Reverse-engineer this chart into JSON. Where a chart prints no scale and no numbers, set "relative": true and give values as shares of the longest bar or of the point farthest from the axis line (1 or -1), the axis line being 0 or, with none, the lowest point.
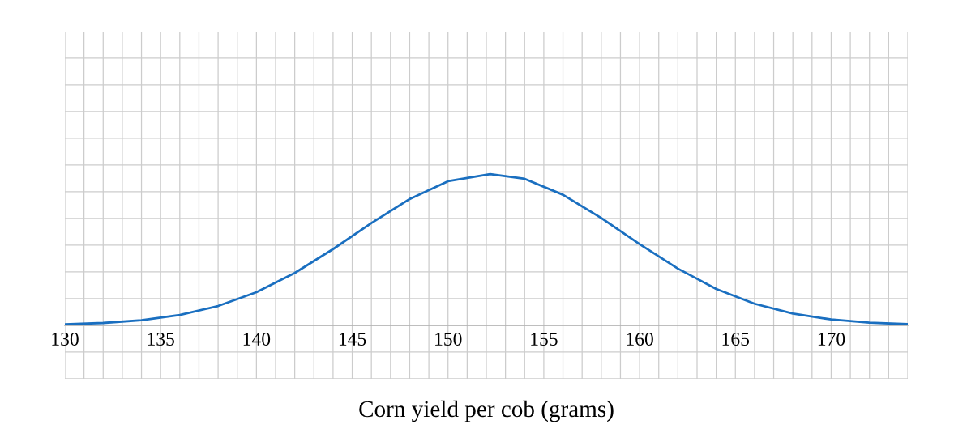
{
  "chart_data": {
    "type": "line",
    "xlabel": "Corn yield per cob (grams)",
    "relative": true,
    "grid": true,
    "marker": "none",
    "line_style": "solid",
    "tick_labels": "x",
    "xlim": [
      130,
      174
    ],
    "xticks": [
      130,
      {
        "value": 131,
        "label": null
      },
      {
        "value": 132,
        "label": null
      },
      {
        "value": 133,
        "label": null
      },
      {
        "value": 134,
        "label": null
      },
      135,
      {
        "value": 136,
        "label": null
      },
      {
        "value": 137,
        "label": null
      },
      {
        "value": 138,
        "label": null
      },
      {
        "value": 139,
        "label": null
      },
      140,
      {
        "value": 141,
        "label": null
      },
      {
        "value": 142,
        "label": null
      },
      {
        "value": 143,
        "label": null
      },
      {
        "value": 144,
        "label": null
      },
      145,
      {
        "value": 146,
        "label": null
      },
      {
        "value": 147,
        "label": null
      },
      {
        "value": 148,
        "label": null
      },
      {
        "value": 149,
        "label": null
      },
      150,
      {
        "value": 151,
        "label": null
      },
      {
        "value": 152,
        "label": null
      },
      {
        "value": 153,
        "label": null
      },
      {
        "value": 154,
        "label": null
      },
      155,
      {
        "value": 156,
        "label": null
      },
      {
        "value": 157,
        "label": null
      },
      {
        "value": 158,
        "label": null
      },
      {
        "value": 159,
        "label": null
      },
      160,
      {
        "value": 161,
        "label": null
      },
      {
        "value": 162,
        "label": null
      },
      {
        "value": 163,
        "label": null
      },
      {
        "value": 164,
        "label": null
      },
      165,
      {
        "value": 166,
        "label": null
      },
      {
        "value": 167,
        "label": null
      },
      {
        "value": 168,
        "label": null
      },
      {
        "value": 169,
        "label": null
      },
      170,
      {
        "value": 171,
        "label": null
      },
      {
        "value": 172,
        "label": null
      },
      {
        "value": 173,
        "label": null
      },
      {
        "value": 174,
        "label": null
      }
    ],
    "series": [
      {
        "color": "#1a6fc0",
        "x": [
          130,
          132,
          134,
          136,
          138,
          140,
          142,
          144,
          146,
          148,
          150,
          152.2,
          154,
          156,
          158,
          160,
          162,
          164,
          166,
          168,
          170,
          172,
          174
        ],
        "values": [
          0.007,
          0.016,
          0.034,
          0.069,
          0.128,
          0.219,
          0.346,
          0.504,
          0.676,
          0.835,
          0.952,
          1,
          0.968,
          0.863,
          0.709,
          0.537,
          0.375,
          0.241,
          0.143,
          0.078,
          0.039,
          0.018,
          0.008
        ]
      }
    ]
  }
}
